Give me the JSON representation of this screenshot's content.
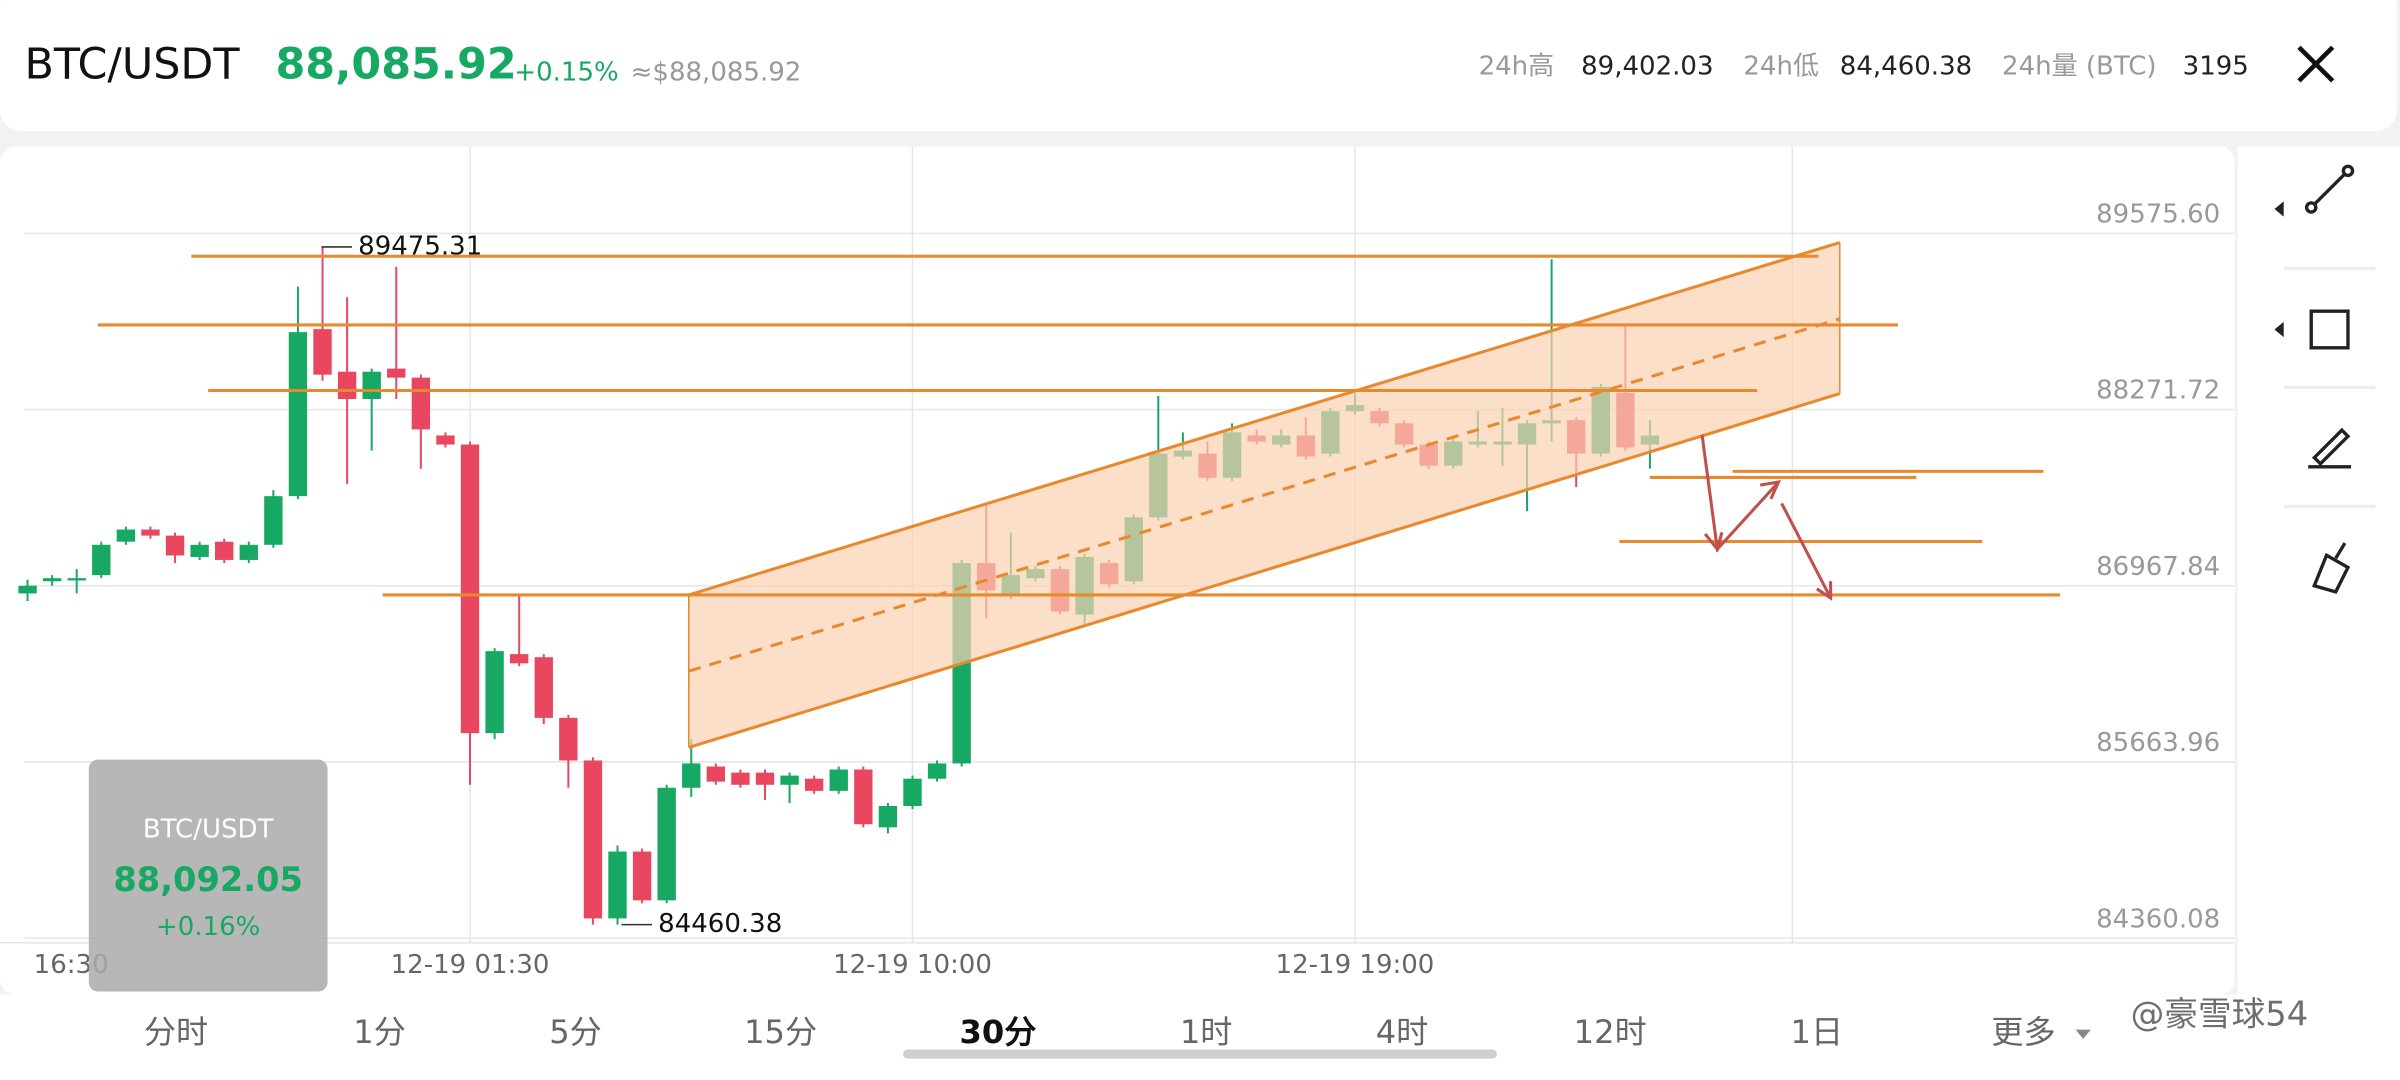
{
  "header": {
    "symbol": "BTC/USDT",
    "price": "88,085.92",
    "change": "+0.15%",
    "approx": "≈$88,085.92",
    "stats": [
      {
        "label": "24h高",
        "value": "89,402.03"
      },
      {
        "label": "24h低",
        "value": "84,460.38"
      },
      {
        "label": "24h量 (BTC)",
        "value": "3195"
      }
    ]
  },
  "chart_data": {
    "type": "candlestick",
    "categories": [
      "16:30",
      null,
      null,
      null,
      null,
      null,
      null,
      null,
      null,
      null,
      null,
      null,
      null,
      null,
      null,
      null,
      null,
      null,
      "12-19 01:30",
      null,
      null,
      null,
      null,
      null,
      null,
      null,
      null,
      null,
      null,
      null,
      null,
      null,
      null,
      null,
      null,
      null,
      "12-19 10:00",
      null,
      null,
      null,
      null,
      null,
      null,
      null,
      null,
      null,
      null,
      null,
      null,
      null,
      null,
      null,
      null,
      null,
      "12-19 19:00",
      null,
      null,
      null,
      null,
      null,
      null,
      null,
      null,
      null,
      null,
      null,
      null
    ],
    "open": [
      86911,
      87001,
      87013,
      87047,
      87294,
      87384,
      87339,
      87181,
      87294,
      87159,
      87271,
      87631,
      88867,
      88552,
      88350,
      88575,
      88508,
      88080,
      88013,
      85877,
      86462,
      86439,
      85990,
      85675,
      84506,
      85001,
      84640,
      85473,
      85630,
      85585,
      85585,
      85495,
      85540,
      85450,
      85608,
      85180,
      85338,
      85540,
      85653,
      87136,
      86889,
      87024,
      87091,
      86755,
      87136,
      87001,
      87474,
      87924,
      87946,
      87767,
      88080,
      88013,
      88080,
      87946,
      88260,
      88260,
      88170,
      88013,
      87856,
      88013,
      88013,
      88013,
      88170,
      88193,
      87946,
      88395,
      88013
    ],
    "high": [
      87013,
      87047,
      87091,
      87294,
      87406,
      87406,
      87361,
      87294,
      87316,
      87294,
      87676,
      89182,
      89475,
      89103,
      88575,
      89328,
      88530,
      88103,
      88035,
      86506,
      86889,
      86462,
      86012,
      85698,
      85046,
      85023,
      85495,
      85833,
      85653,
      85608,
      85608,
      85585,
      85563,
      85630,
      85630,
      85360,
      85563,
      85675,
      87159,
      87563,
      87361,
      87114,
      87114,
      87204,
      87159,
      87496,
      88373,
      88103,
      88035,
      88170,
      88125,
      88125,
      88215,
      88283,
      88395,
      88283,
      88193,
      88035,
      88058,
      88260,
      88283,
      88193,
      89384,
      88215,
      88462,
      88890,
      88193
    ],
    "low": [
      86855,
      86968,
      86911,
      87024,
      87271,
      87316,
      87136,
      87159,
      87136,
      87136,
      87249,
      87609,
      88485,
      87721,
      87968,
      88350,
      87833,
      87991,
      85495,
      85833,
      86372,
      85945,
      85473,
      84460,
      84460,
      84618,
      84618,
      85405,
      85495,
      85473,
      85383,
      85360,
      85428,
      85428,
      85180,
      85135,
      85315,
      85518,
      85630,
      86726,
      86867,
      87001,
      86755,
      86687,
      86957,
      86979,
      87451,
      87901,
      87744,
      87744,
      88013,
      87991,
      87901,
      87924,
      88238,
      88148,
      87991,
      87833,
      87833,
      87991,
      87855,
      87519,
      88035,
      87698,
      87924,
      87968,
      87835
    ],
    "close": [
      86968,
      87024,
      87024,
      87271,
      87384,
      87339,
      87192,
      87271,
      87159,
      87271,
      87631,
      88845,
      88530,
      88350,
      88552,
      88508,
      88125,
      88013,
      85877,
      86484,
      86394,
      85990,
      85675,
      84506,
      85001,
      84640,
      85473,
      85653,
      85518,
      85495,
      85495,
      85563,
      85450,
      85608,
      85203,
      85338,
      85540,
      85653,
      87136,
      86934,
      87047,
      87091,
      86777,
      87181,
      86979,
      87474,
      87946,
      87968,
      87767,
      88103,
      88035,
      88080,
      87924,
      88260,
      88305,
      88170,
      88013,
      87856,
      88035,
      88035,
      88035,
      88170,
      88193,
      87946,
      88440,
      87991,
      88080
    ],
    "ylim": [
      84360.08,
      89575.6
    ],
    "yticks": [
      {
        "value": 89575.6,
        "label": "89575.60"
      },
      88271.72,
      86967.84,
      85663.96,
      84360.08
    ],
    "grid": true,
    "up_color": "#17a864",
    "down_color": "#e8475f",
    "annotations": [
      89475.31,
      84460.38
    ]
  },
  "tooltip": {
    "symbol": "BTC/USDT",
    "price": "88,092.05",
    "change": "+0.16%"
  },
  "tabs": [
    "分时",
    "1分",
    "5分",
    "15分",
    "30分",
    "1时",
    "4时",
    "12时",
    "1日",
    "更多"
  ],
  "selected_tab": 4,
  "watermark": "@豪雪球54"
}
